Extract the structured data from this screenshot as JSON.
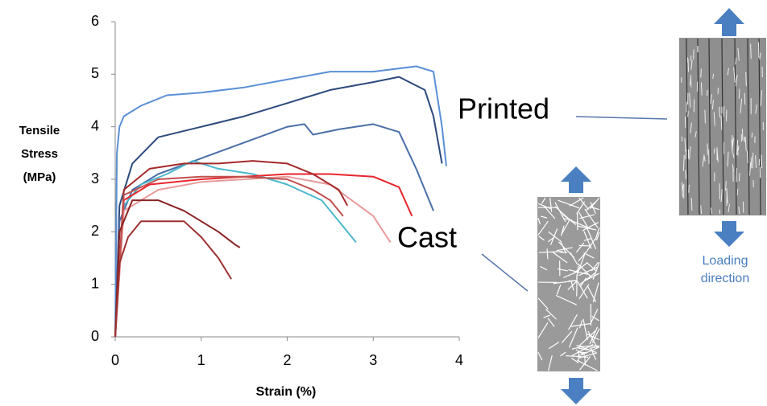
{
  "chart_data": {
    "type": "line",
    "xlabel": "Strain (%)",
    "ylabel": "Tensile Stress (MPa)",
    "xlim": [
      0,
      4
    ],
    "xticks": [
      0,
      1,
      2,
      3,
      4
    ],
    "ylim": [
      0,
      6
    ],
    "yticks": [
      0,
      1,
      2,
      3,
      4,
      5,
      6
    ],
    "annotations": {
      "printed": "Printed",
      "cast": "Cast",
      "loading": "Loading direction"
    },
    "series": [
      {
        "color": "#5b8fd6",
        "x": [
          0,
          0.02,
          0.05,
          0.1,
          0.3,
          0.6,
          1.0,
          1.5,
          2.0,
          2.5,
          3.0,
          3.5,
          3.7,
          3.8,
          3.85
        ],
        "values": [
          0,
          3.5,
          4.0,
          4.2,
          4.4,
          4.6,
          4.65,
          4.75,
          4.9,
          5.05,
          5.05,
          5.15,
          5.05,
          4.0,
          3.25
        ]
      },
      {
        "color": "#2c4a7c",
        "x": [
          0,
          0.05,
          0.2,
          0.5,
          1.0,
          1.5,
          2.0,
          2.5,
          3.0,
          3.3,
          3.6,
          3.7,
          3.8
        ],
        "values": [
          0,
          2.5,
          3.3,
          3.8,
          4.0,
          4.2,
          4.45,
          4.7,
          4.85,
          4.95,
          4.7,
          4.2,
          3.3
        ]
      },
      {
        "color": "#4a6fa8",
        "x": [
          0,
          0.05,
          0.2,
          0.5,
          1.0,
          1.5,
          2.0,
          2.2,
          2.3,
          2.6,
          3.0,
          3.3,
          3.5,
          3.7
        ],
        "values": [
          0,
          2.2,
          2.8,
          3.1,
          3.4,
          3.7,
          4.0,
          4.05,
          3.85,
          3.95,
          4.05,
          3.9,
          3.2,
          2.4
        ]
      },
      {
        "color": "#4bb8cc",
        "x": [
          0,
          0.1,
          0.3,
          0.6,
          0.9,
          1.2,
          1.6,
          2.0,
          2.4,
          2.6,
          2.8
        ],
        "values": [
          0,
          2.5,
          2.9,
          3.1,
          3.35,
          3.2,
          3.1,
          2.9,
          2.6,
          2.2,
          1.8
        ]
      },
      {
        "color": "#e8262d",
        "x": [
          0,
          0.1,
          0.4,
          1.0,
          1.5,
          2.0,
          2.5,
          3.0,
          3.3,
          3.45
        ],
        "values": [
          0,
          2.6,
          2.9,
          3.0,
          3.05,
          3.1,
          3.1,
          3.05,
          2.85,
          2.3
        ]
      },
      {
        "color": "#e89a9a",
        "x": [
          0,
          0.1,
          0.5,
          1.0,
          1.5,
          2.0,
          2.5,
          3.0,
          3.2
        ],
        "values": [
          0,
          2.4,
          2.8,
          2.95,
          3.0,
          3.05,
          2.9,
          2.3,
          1.8
        ]
      },
      {
        "color": "#a52a2a",
        "x": [
          0,
          0.1,
          0.4,
          0.8,
          1.2,
          1.6,
          2.0,
          2.3,
          2.6,
          2.7
        ],
        "values": [
          0,
          2.8,
          3.2,
          3.3,
          3.3,
          3.35,
          3.3,
          3.1,
          2.8,
          2.5
        ]
      },
      {
        "color": "#c0504d",
        "x": [
          0,
          0.1,
          0.5,
          1.0,
          1.5,
          2.0,
          2.3,
          2.5,
          2.65
        ],
        "values": [
          0,
          2.7,
          3.0,
          3.05,
          3.05,
          3.0,
          2.8,
          2.6,
          2.3
        ]
      },
      {
        "color": "#8b2323",
        "x": [
          0,
          0.05,
          0.2,
          0.5,
          0.8,
          1.0,
          1.2,
          1.4,
          1.45
        ],
        "values": [
          0,
          2.0,
          2.6,
          2.6,
          2.4,
          2.2,
          2.0,
          1.75,
          1.7
        ]
      },
      {
        "color": "#9c3030",
        "x": [
          0,
          0.05,
          0.15,
          0.3,
          0.5,
          0.8,
          1.0,
          1.2,
          1.35
        ],
        "values": [
          0,
          1.4,
          1.9,
          2.2,
          2.2,
          2.2,
          1.9,
          1.5,
          1.1
        ]
      }
    ]
  }
}
